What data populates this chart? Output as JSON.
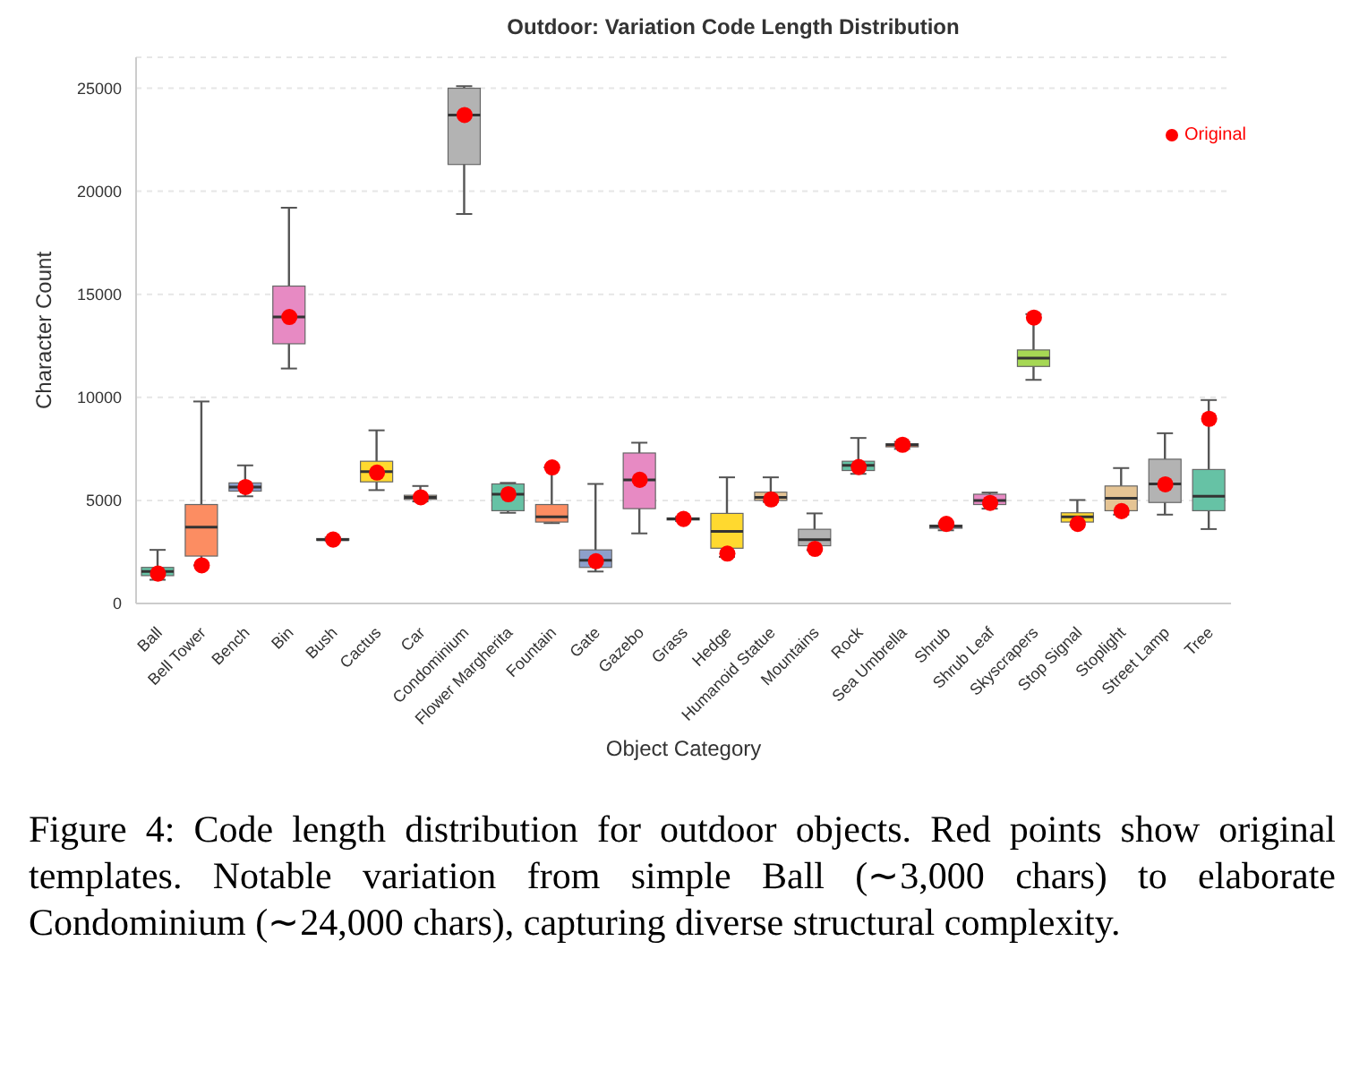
{
  "chart_data": {
    "type": "box",
    "title": "Outdoor: Variation Code Length Distribution",
    "xlabel": "Object Category",
    "ylabel": "Character Count",
    "categories": [
      "Ball",
      "Bell Tower",
      "Bench",
      "Bin",
      "Bush",
      "Cactus",
      "Car",
      "Condominium",
      "Flower Margherita",
      "Fountain",
      "Gate",
      "Gazebo",
      "Grass",
      "Hedge",
      "Humanoid Statue",
      "Mountains",
      "Rock",
      "Sea Umbrella",
      "Shrub",
      "Shrub Leaf",
      "Skyscrapers",
      "Stop Signal",
      "Stoplight",
      "Street Lamp",
      "Tree"
    ],
    "colors": [
      "#66c2a5",
      "#fc8d62",
      "#8da0cb",
      "#e78ac3",
      "#a6d854",
      "#ffd92f",
      "#e5c494",
      "#b3b3b3",
      "#66c2a5",
      "#fc8d62",
      "#8da0cb",
      "#e78ac3",
      "#a6d854",
      "#ffd92f",
      "#e5c494",
      "#b3b3b3",
      "#66c2a5",
      "#fc8d62",
      "#8da0cb",
      "#e78ac3",
      "#a6d854",
      "#ffd92f",
      "#e5c494",
      "#b3b3b3",
      "#66c2a5"
    ],
    "boxes": [
      {
        "low": 1150,
        "q1": 1350,
        "median": 1550,
        "q3": 1750,
        "high": 2600
      },
      {
        "low": 1850,
        "q1": 2300,
        "median": 3700,
        "q3": 4800,
        "high": 9800
      },
      {
        "low": 5200,
        "q1": 5450,
        "median": 5650,
        "q3": 5850,
        "high": 6700
      },
      {
        "low": 11400,
        "q1": 12600,
        "median": 13900,
        "q3": 15400,
        "high": 19200
      },
      {
        "low": 3050,
        "q1": 3080,
        "median": 3100,
        "q3": 3150,
        "high": 3200
      },
      {
        "low": 5500,
        "q1": 5900,
        "median": 6400,
        "q3": 6900,
        "high": 8400
      },
      {
        "low": 4950,
        "q1": 5050,
        "median": 5150,
        "q3": 5250,
        "high": 5700
      },
      {
        "low": 18900,
        "q1": 21300,
        "median": 23700,
        "q3": 25000,
        "high": 25100
      },
      {
        "low": 4400,
        "q1": 4500,
        "median": 5300,
        "q3": 5800,
        "high": 5850
      },
      {
        "low": 3900,
        "q1": 3950,
        "median": 4200,
        "q3": 4800,
        "high": 6600
      },
      {
        "low": 1550,
        "q1": 1750,
        "median": 2100,
        "q3": 2600,
        "high": 5800
      },
      {
        "low": 3400,
        "q1": 4600,
        "median": 6000,
        "q3": 7300,
        "high": 7800
      },
      {
        "low": 4000,
        "q1": 4050,
        "median": 4100,
        "q3": 4150,
        "high": 4200
      },
      {
        "low": 2260,
        "q1": 2680,
        "median": 3500,
        "q3": 4370,
        "high": 6120
      },
      {
        "low": 4930,
        "q1": 5000,
        "median": 5150,
        "q3": 5400,
        "high": 6120
      },
      {
        "low": 2590,
        "q1": 2800,
        "median": 3100,
        "q3": 3600,
        "high": 4370
      },
      {
        "low": 6290,
        "q1": 6450,
        "median": 6700,
        "q3": 6900,
        "high": 8030
      },
      {
        "low": 7500,
        "q1": 7600,
        "median": 7700,
        "q3": 7750,
        "high": 7840
      },
      {
        "low": 3550,
        "q1": 3650,
        "median": 3750,
        "q3": 3800,
        "high": 3890
      },
      {
        "low": 4600,
        "q1": 4800,
        "median": 5000,
        "q3": 5300,
        "high": 5380
      },
      {
        "low": 10850,
        "q1": 11500,
        "median": 11900,
        "q3": 12300,
        "high": 14040
      },
      {
        "low": 3800,
        "q1": 3950,
        "median": 4200,
        "q3": 4400,
        "high": 5020
      },
      {
        "low": 4310,
        "q1": 4500,
        "median": 5100,
        "q3": 5700,
        "high": 6570
      },
      {
        "low": 4310,
        "q1": 4900,
        "median": 5800,
        "q3": 7000,
        "high": 8260
      },
      {
        "low": 3610,
        "q1": 4500,
        "median": 5200,
        "q3": 6500,
        "high": 9870
      }
    ],
    "series": [
      {
        "type": "scatter",
        "name": "Original",
        "color": "#ff0000",
        "x": [
          "Ball",
          "Bell Tower",
          "Bench",
          "Bin",
          "Bush",
          "Cactus",
          "Car",
          "Condominium",
          "Flower Margherita",
          "Fountain",
          "Gate",
          "Gazebo",
          "Grass",
          "Hedge",
          "Humanoid Statue",
          "Mountains",
          "Rock",
          "Sea Umbrella",
          "Shrub",
          "Shrub Leaf",
          "Skyscrapers",
          "Stop Signal",
          "Stoplight",
          "Street Lamp",
          "Tree"
        ],
        "values": [
          1450,
          1850,
          5650,
          13900,
          3100,
          6350,
          5150,
          23700,
          5300,
          6600,
          2050,
          6000,
          4100,
          2420,
          5050,
          2650,
          6620,
          7700,
          3860,
          4880,
          13870,
          3860,
          4480,
          5780,
          8960
        ]
      }
    ],
    "ylim": [
      0,
      26500
    ],
    "yticks": [
      0,
      5000,
      10000,
      15000,
      20000,
      25000
    ],
    "grid": "y",
    "legend": "top right",
    "marker": "circle",
    "annotations": [
      "Figure 4:  Code length distribution for outdoor objects.  Red points show original templates. Notable variation from simple Ball (∼3,000 chars) to elaborate Condominium (∼24,000 chars), capturing diverse structural complexity."
    ]
  }
}
